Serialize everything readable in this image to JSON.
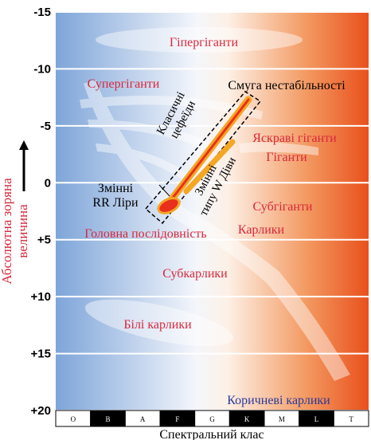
{
  "y_axis": {
    "label_lines": [
      "Абсолютна зоряна",
      "величина"
    ],
    "ticks": [
      {
        "value": -15,
        "label": "-15"
      },
      {
        "value": -10,
        "label": "-10"
      },
      {
        "value": -5,
        "label": "-5"
      },
      {
        "value": 0,
        "label": "0"
      },
      {
        "value": 5,
        "label": "+5"
      },
      {
        "value": 10,
        "label": "+10"
      },
      {
        "value": 15,
        "label": "+15"
      },
      {
        "value": 20,
        "label": "+20"
      }
    ],
    "lim": [
      -15,
      20
    ]
  },
  "x_axis": {
    "label": "Спектральний клас",
    "classes": [
      "O",
      "B",
      "A",
      "F",
      "G",
      "K",
      "M",
      "L",
      "T"
    ]
  },
  "regions": [
    {
      "lines": [
        "Гіпергіганти"
      ]
    },
    {
      "lines": [
        "Супергіганти"
      ]
    },
    {
      "lines": [
        "Смуга нестабільності"
      ]
    },
    {
      "lines": [
        "Класичні",
        "цефеїди"
      ]
    },
    {
      "lines": [
        "Яскраві гіганти"
      ]
    },
    {
      "lines": [
        "Гіганти"
      ]
    },
    {
      "lines": [
        "Змінні",
        "типу W Діви"
      ]
    },
    {
      "lines": [
        "Змінні",
        "RR Ліри"
      ]
    },
    {
      "lines": [
        "Субгіганти"
      ]
    },
    {
      "lines": [
        "Головна послідовність"
      ]
    },
    {
      "lines": [
        "Карлики"
      ]
    },
    {
      "lines": [
        "Субкарлики"
      ]
    },
    {
      "lines": [
        "Білі карлики"
      ]
    },
    {
      "lines": [
        "Коричневі карлики"
      ]
    }
  ]
}
